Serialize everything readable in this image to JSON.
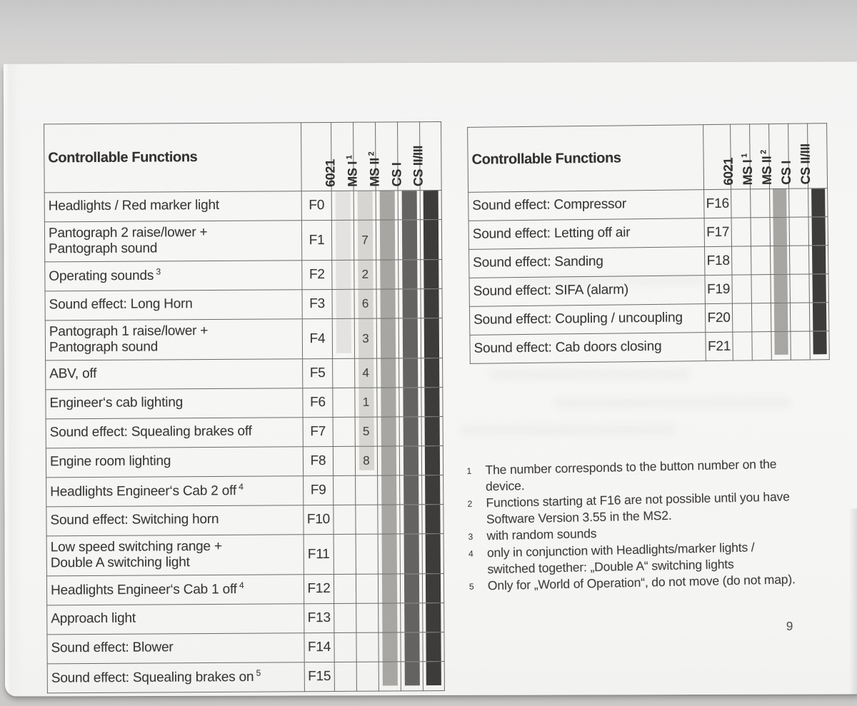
{
  "page": {
    "number": "9"
  },
  "tables": {
    "left": {
      "title": "Controllable Functions",
      "columns": [
        {
          "id": "c6021",
          "label": "6021",
          "sup": ""
        },
        {
          "id": "msi",
          "label": "MS I",
          "sup": "1"
        },
        {
          "id": "msii",
          "label": "MS II",
          "sup": "2"
        },
        {
          "id": "csi",
          "label": "CS I",
          "sup": ""
        },
        {
          "id": "csii",
          "label": "CS II/III",
          "sup": ""
        }
      ],
      "rows": [
        {
          "label": "Headlights / Red marker light",
          "sup": "",
          "fn": "F0",
          "msi": ""
        },
        {
          "label": "Pantograph 2 raise/lower +\nPantograph sound",
          "sup": "",
          "fn": "F1",
          "msi": "7"
        },
        {
          "label": "Operating sounds",
          "sup": "3",
          "fn": "F2",
          "msi": "2"
        },
        {
          "label": "Sound effect: Long Horn",
          "sup": "",
          "fn": "F3",
          "msi": "6"
        },
        {
          "label": "Pantograph 1 raise/lower +\nPantograph sound",
          "sup": "",
          "fn": "F4",
          "msi": "3"
        },
        {
          "label": "ABV, off",
          "sup": "",
          "fn": "F5",
          "msi": "4"
        },
        {
          "label": "Engineer‘s cab lighting",
          "sup": "",
          "fn": "F6",
          "msi": "1"
        },
        {
          "label": "Sound effect: Squealing brakes off",
          "sup": "",
          "fn": "F7",
          "msi": "5"
        },
        {
          "label": "Engine room lighting",
          "sup": "",
          "fn": "F8",
          "msi": "8"
        },
        {
          "label": "Headlights Engineer‘s Cab 2 off",
          "sup": "4",
          "fn": "F9",
          "msi": ""
        },
        {
          "label": "Sound effect: Switching horn",
          "sup": "",
          "fn": "F10",
          "msi": ""
        },
        {
          "label": "Low speed switching range +\nDouble A switching light",
          "sup": "",
          "fn": "F11",
          "msi": ""
        },
        {
          "label": "Headlights Engineer‘s Cab 1 off",
          "sup": "4",
          "fn": "F12",
          "msi": ""
        },
        {
          "label": "Approach light",
          "sup": "",
          "fn": "F13",
          "msi": ""
        },
        {
          "label": "Sound effect: Blower",
          "sup": "",
          "fn": "F14",
          "msi": ""
        },
        {
          "label": "Sound effect: Squealing brakes on",
          "sup": "5",
          "fn": "F15",
          "msi": ""
        }
      ],
      "bars": {
        "c6021": [
          0,
          4
        ],
        "msi": [
          0,
          8
        ],
        "msii": [
          0,
          15
        ],
        "csi": [
          0,
          15
        ],
        "csii": [
          0,
          15
        ]
      }
    },
    "right": {
      "title": "Controllable Functions",
      "columns": [
        {
          "id": "c6021",
          "label": "6021",
          "sup": ""
        },
        {
          "id": "msi",
          "label": "MS I",
          "sup": "1"
        },
        {
          "id": "msii",
          "label": "MS II",
          "sup": "2"
        },
        {
          "id": "csi",
          "label": "CS I",
          "sup": ""
        },
        {
          "id": "csii",
          "label": "CS II/III",
          "sup": ""
        }
      ],
      "rows": [
        {
          "label": "Sound effect: Compressor",
          "sup": "",
          "fn": "F16",
          "msi": ""
        },
        {
          "label": "Sound effect: Letting off air",
          "sup": "",
          "fn": "F17",
          "msi": ""
        },
        {
          "label": "Sound effect: Sanding",
          "sup": "",
          "fn": "F18",
          "msi": ""
        },
        {
          "label": "Sound effect: SIFA (alarm)",
          "sup": "",
          "fn": "F19",
          "msi": ""
        },
        {
          "label": "Sound effect: Coupling / uncoupling",
          "sup": "",
          "fn": "F20",
          "msi": ""
        },
        {
          "label": "Sound effect: Cab doors closing",
          "sup": "",
          "fn": "F21",
          "msi": ""
        }
      ],
      "bars": {
        "msii": [
          0,
          5
        ],
        "csii": [
          0,
          5
        ]
      }
    }
  },
  "footnotes": [
    {
      "marker": "1",
      "text": "The number corresponds to the button number on the\ndevice."
    },
    {
      "marker": "2",
      "text": "Functions starting at F16 are not possible until you have\nSoftware Version 3.55 in the MS2."
    },
    {
      "marker": "3",
      "text": "with random sounds"
    },
    {
      "marker": "4",
      "text": "only in conjunction with Headlights/marker lights /\nswitched together: „Double A“ switching lights"
    },
    {
      "marker": "5",
      "text": "Only for „World of Operation“, do not move (do not map)."
    }
  ],
  "colors": {
    "bars": {
      "c6021": "#e3e2e0",
      "msi": "#d6d5d2",
      "msii": "#a7a6a3",
      "csi": "#656361",
      "csii": "#3e3c3a"
    },
    "grid": "#6c6b69",
    "text": "#3a3938"
  }
}
